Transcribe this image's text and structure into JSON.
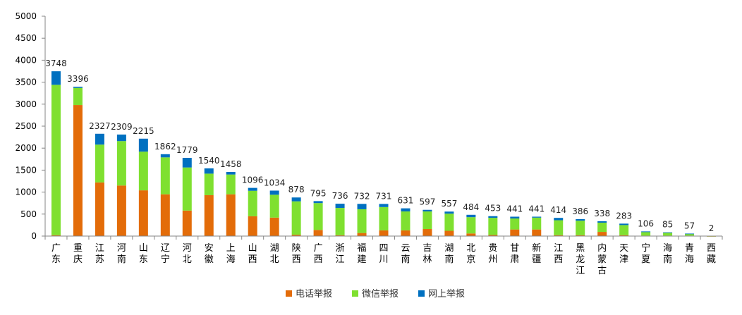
{
  "chart_data": {
    "type": "bar",
    "stacked": true,
    "categories": [
      "广东",
      "重庆",
      "江苏",
      "河南",
      "山东",
      "辽宁",
      "河北",
      "安徽",
      "上海",
      "山西",
      "湖北",
      "陕西",
      "广西",
      "浙江",
      "福建",
      "四川",
      "云南",
      "吉林",
      "湖南",
      "北京",
      "贵州",
      "甘肃",
      "新疆",
      "江西",
      "黑龙江",
      "内蒙古",
      "天津",
      "宁夏",
      "海南",
      "青海",
      "西藏"
    ],
    "series": [
      {
        "name": "电话举报",
        "color": "#E36C09",
        "values": [
          20,
          2980,
          1220,
          1150,
          1040,
          950,
          580,
          930,
          950,
          450,
          420,
          30,
          140,
          20,
          70,
          130,
          130,
          160,
          120,
          60,
          25,
          150,
          150,
          20,
          20,
          95,
          20,
          10,
          10,
          10,
          1
        ]
      },
      {
        "name": "微信举报",
        "color": "#7FE030",
        "values": [
          3420,
          390,
          860,
          1010,
          880,
          840,
          980,
          490,
          450,
          580,
          520,
          760,
          610,
          620,
          540,
          530,
          430,
          400,
          390,
          370,
          390,
          250,
          270,
          340,
          330,
          210,
          230,
          80,
          65,
          40,
          1
        ]
      },
      {
        "name": "网上举报",
        "color": "#0070C0",
        "values": [
          308,
          26,
          247,
          149,
          295,
          72,
          219,
          120,
          58,
          66,
          94,
          88,
          45,
          96,
          122,
          71,
          71,
          37,
          47,
          54,
          38,
          41,
          21,
          54,
          36,
          33,
          33,
          16,
          10,
          7,
          0
        ]
      }
    ],
    "totals": [
      "3748",
      "3396",
      "2327",
      "2309",
      "2215",
      "1862",
      "1779",
      "1540",
      "1458",
      "1096",
      "1034",
      "878",
      "795",
      "736",
      "732",
      "731",
      "631",
      "597",
      "557",
      "484",
      "453",
      "441",
      "441",
      "414",
      "386",
      "338",
      "283",
      "106",
      "85",
      "57",
      "2"
    ],
    "ylim": [
      0,
      5000
    ],
    "yticks": [
      "0",
      "500",
      "1000",
      "1500",
      "2000",
      "2500",
      "3000",
      "3500",
      "4000",
      "4500",
      "5000"
    ],
    "grid": false,
    "legend": "bottom",
    "title": "",
    "xlabel": "",
    "ylabel": ""
  }
}
